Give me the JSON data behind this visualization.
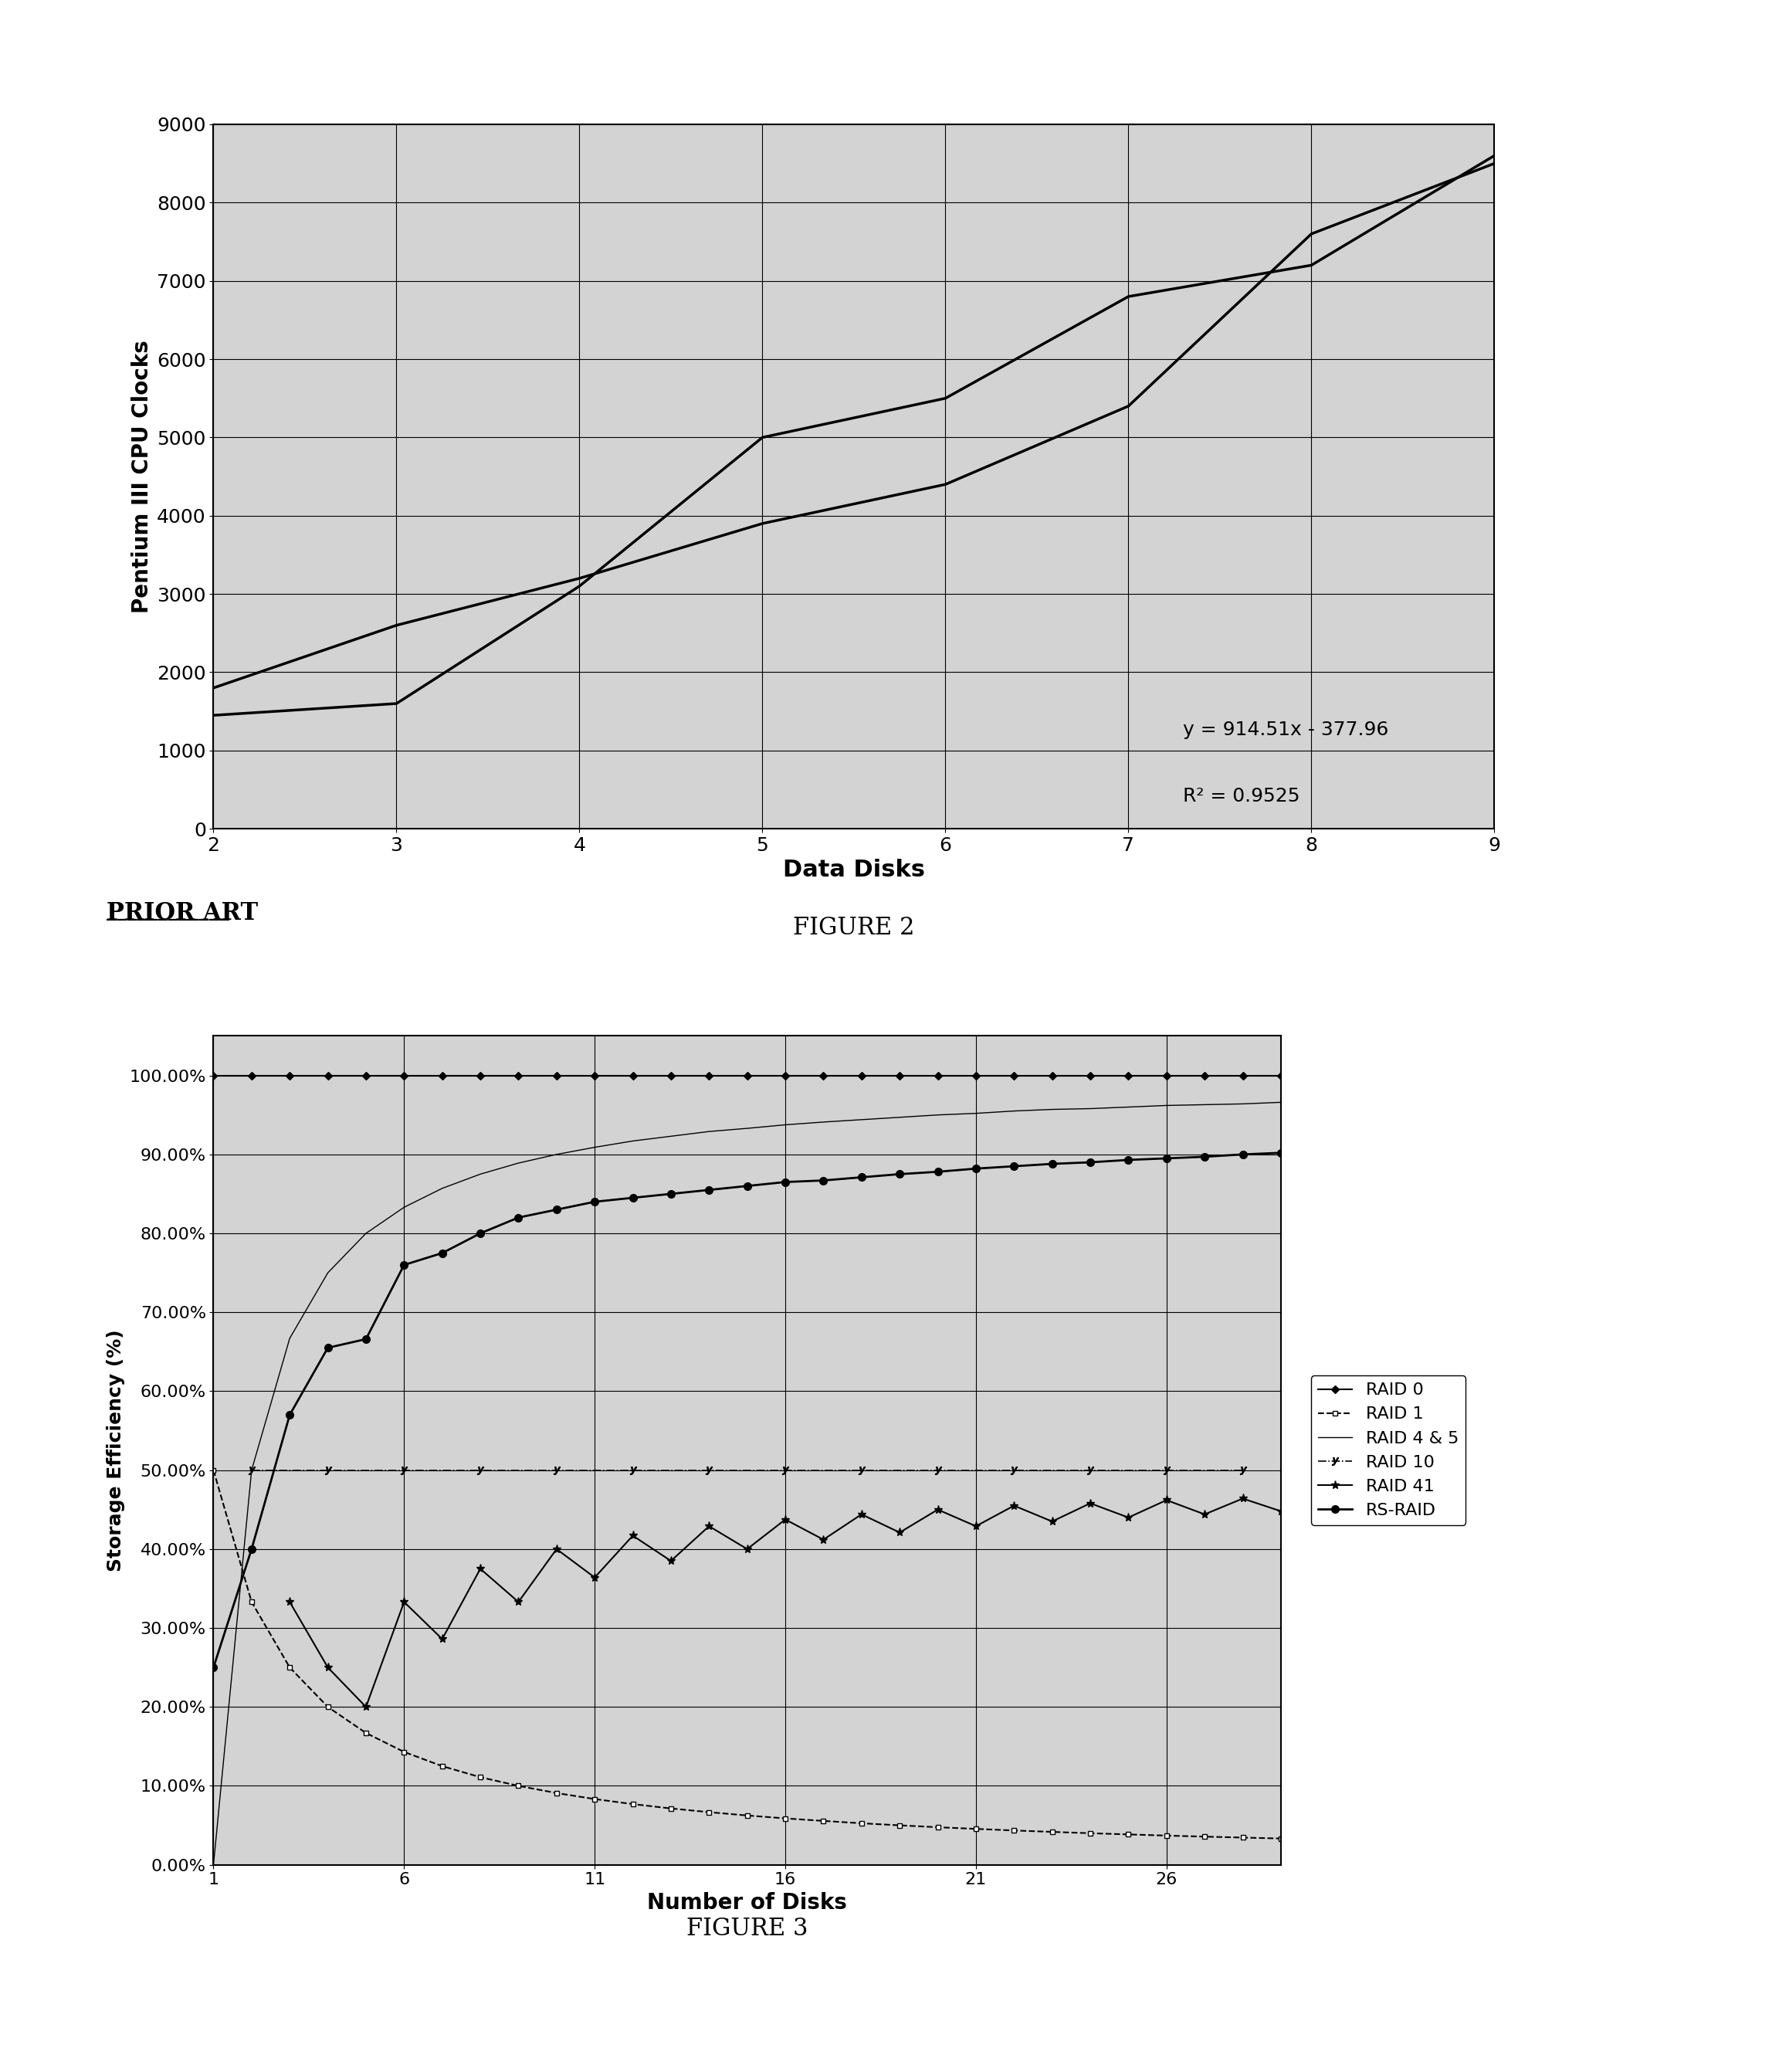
{
  "fig2": {
    "title": "",
    "xlabel": "Data Disks",
    "ylabel": "Pentium III CPU Clocks",
    "xlim": [
      2,
      9
    ],
    "ylim": [
      0,
      9000
    ],
    "yticks": [
      0,
      1000,
      2000,
      3000,
      4000,
      5000,
      6000,
      7000,
      8000,
      9000
    ],
    "xticks": [
      2,
      3,
      4,
      5,
      6,
      7,
      8,
      9
    ],
    "line1_x": [
      2,
      3,
      4,
      5,
      6,
      7,
      8,
      9
    ],
    "line1_y": [
      1800,
      2600,
      3200,
      3900,
      4400,
      5400,
      7600,
      8500
    ],
    "line2_x": [
      2,
      3,
      4,
      5,
      6,
      7,
      8,
      9
    ],
    "line2_y": [
      1450,
      1600,
      3100,
      5000,
      5500,
      6800,
      7200,
      8600
    ],
    "equation": "y = 914.51x - 377.96",
    "r_squared": "R² = 0.9525",
    "prior_art": "PRIOR ART",
    "figure_label": "FIGURE 2",
    "bg_color": "#d3d3d3"
  },
  "fig3": {
    "title": "",
    "xlabel": "Number of Disks",
    "ylabel": "Storage Efficiency (%)",
    "xlim": [
      1,
      29
    ],
    "ylim": [
      0.0,
      1.05
    ],
    "xticks": [
      1,
      6,
      11,
      16,
      21,
      26
    ],
    "yticks": [
      0.0,
      0.1,
      0.2,
      0.3,
      0.4,
      0.5,
      0.6,
      0.7,
      0.8,
      0.9,
      1.0
    ],
    "figure_label": "FIGURE 3",
    "bg_color": "#d3d3d3",
    "raid0_x": [
      1,
      2,
      3,
      4,
      5,
      6,
      7,
      8,
      9,
      10,
      11,
      12,
      13,
      14,
      15,
      16,
      17,
      18,
      19,
      20,
      21,
      22,
      23,
      24,
      25,
      26,
      27,
      28,
      29
    ],
    "raid0_y": [
      1.0,
      1.0,
      1.0,
      1.0,
      1.0,
      1.0,
      1.0,
      1.0,
      1.0,
      1.0,
      1.0,
      1.0,
      1.0,
      1.0,
      1.0,
      1.0,
      1.0,
      1.0,
      1.0,
      1.0,
      1.0,
      1.0,
      1.0,
      1.0,
      1.0,
      1.0,
      1.0,
      1.0,
      1.0
    ],
    "raid1_x": [
      1,
      2,
      3,
      4,
      5,
      6,
      7,
      8,
      9,
      10,
      11,
      12,
      13,
      14,
      15,
      16,
      17,
      18,
      19,
      20,
      21,
      22,
      23,
      24,
      25,
      26,
      27,
      28,
      29
    ],
    "raid1_y": [
      0.5,
      0.333,
      0.25,
      0.2,
      0.167,
      0.143,
      0.125,
      0.111,
      0.1,
      0.0909,
      0.0833,
      0.0769,
      0.0714,
      0.0667,
      0.0625,
      0.0588,
      0.0556,
      0.0526,
      0.05,
      0.0476,
      0.0455,
      0.0435,
      0.0417,
      0.04,
      0.0385,
      0.037,
      0.0357,
      0.0345,
      0.0333
    ],
    "raid45_x": [
      1,
      2,
      3,
      4,
      5,
      6,
      7,
      8,
      9,
      10,
      11,
      12,
      13,
      14,
      15,
      16,
      17,
      18,
      19,
      20,
      21,
      22,
      23,
      24,
      25,
      26,
      27,
      28,
      29
    ],
    "raid45_y": [
      0.0,
      0.5,
      0.667,
      0.75,
      0.8,
      0.833,
      0.857,
      0.875,
      0.889,
      0.9,
      0.909,
      0.917,
      0.923,
      0.929,
      0.933,
      0.9375,
      0.941,
      0.944,
      0.947,
      0.95,
      0.952,
      0.955,
      0.957,
      0.958,
      0.96,
      0.962,
      0.963,
      0.964,
      0.966
    ],
    "raid10_x": [
      2,
      4,
      6,
      8,
      10,
      12,
      14,
      16,
      18,
      20,
      22,
      24,
      26,
      28
    ],
    "raid10_y": [
      0.5,
      0.5,
      0.5,
      0.5,
      0.5,
      0.5,
      0.5,
      0.5,
      0.5,
      0.5,
      0.5,
      0.5,
      0.5,
      0.5
    ],
    "raid41_x": [
      3,
      4,
      5,
      6,
      7,
      8,
      9,
      10,
      11,
      12,
      13,
      14,
      15,
      16,
      17,
      18,
      19,
      20,
      21,
      22,
      23,
      24,
      25,
      26,
      27,
      28,
      29
    ],
    "raid41_y": [
      0.333,
      0.25,
      0.2,
      0.333,
      0.286,
      0.375,
      0.333,
      0.4,
      0.364,
      0.417,
      0.385,
      0.429,
      0.4,
      0.4375,
      0.412,
      0.444,
      0.421,
      0.45,
      0.429,
      0.455,
      0.435,
      0.458,
      0.44,
      0.462,
      0.444,
      0.464,
      0.448
    ],
    "rsraid_x": [
      1,
      2,
      3,
      4,
      5,
      6,
      7,
      8,
      9,
      10,
      11,
      12,
      13,
      14,
      15,
      16,
      17,
      18,
      19,
      20,
      21,
      22,
      23,
      24,
      25,
      26,
      27,
      28,
      29
    ],
    "rsraid_y": [
      0.25,
      0.4,
      0.57,
      0.655,
      0.666,
      0.76,
      0.775,
      0.8,
      0.82,
      0.83,
      0.84,
      0.845,
      0.85,
      0.855,
      0.86,
      0.865,
      0.867,
      0.871,
      0.875,
      0.878,
      0.882,
      0.885,
      0.888,
      0.89,
      0.893,
      0.895,
      0.897,
      0.9,
      0.902
    ]
  }
}
